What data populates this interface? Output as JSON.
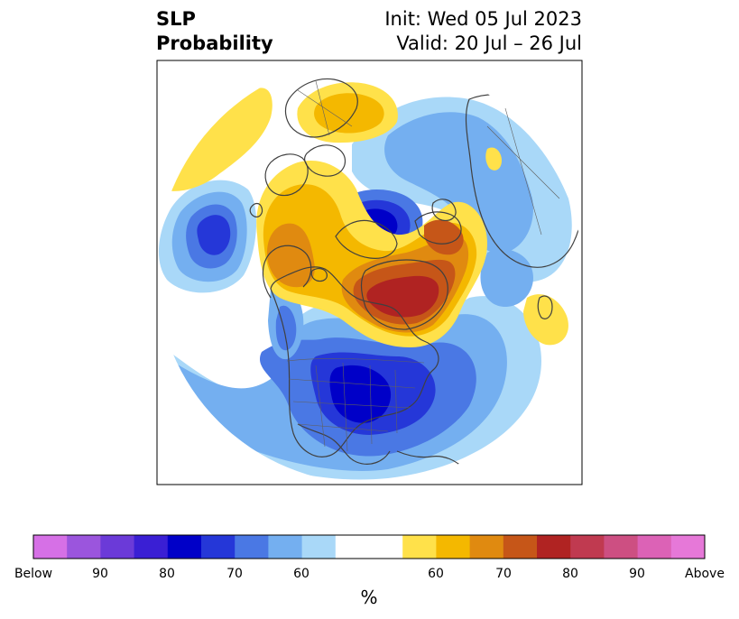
{
  "title": {
    "left_line1": "SLP",
    "left_line2": "Probability",
    "right_line1": "Init: Wed 05 Jul 2023",
    "right_line2": "Valid: 20 Jul – 26 Jul"
  },
  "colorbar": {
    "labels": [
      "Below",
      "90",
      "80",
      "70",
      "60",
      "60",
      "70",
      "80",
      "90",
      "Above"
    ],
    "unit": "%",
    "colors": [
      "#d670e6",
      "#9b55dd",
      "#6b3ad8",
      "#3a1fd4",
      "#0000c8",
      "#2537d8",
      "#4a78e4",
      "#74aff0",
      "#a9d8f8",
      "#ffffff",
      "#ffe14a",
      "#f4b800",
      "#e08a10",
      "#c65618",
      "#b02322",
      "#c03a50",
      "#cd4f82",
      "#dc62b6",
      "#e678d8"
    ]
  },
  "map": {
    "features": [
      "probability-contours",
      "coastlines",
      "country-borders",
      "us-state-borders"
    ],
    "colors": {
      "below_light": "#a9d8f8",
      "below_mid": "#74aff0",
      "below_strong": "#4a78e4",
      "below_stronger": "#2537d8",
      "below_strongest": "#0000c8",
      "above_light": "#ffe14a",
      "above_mid": "#f4b800",
      "above_strong": "#e08a10",
      "above_stronger": "#c65618",
      "above_strongest": "#b02322",
      "coast": "#404040"
    }
  }
}
